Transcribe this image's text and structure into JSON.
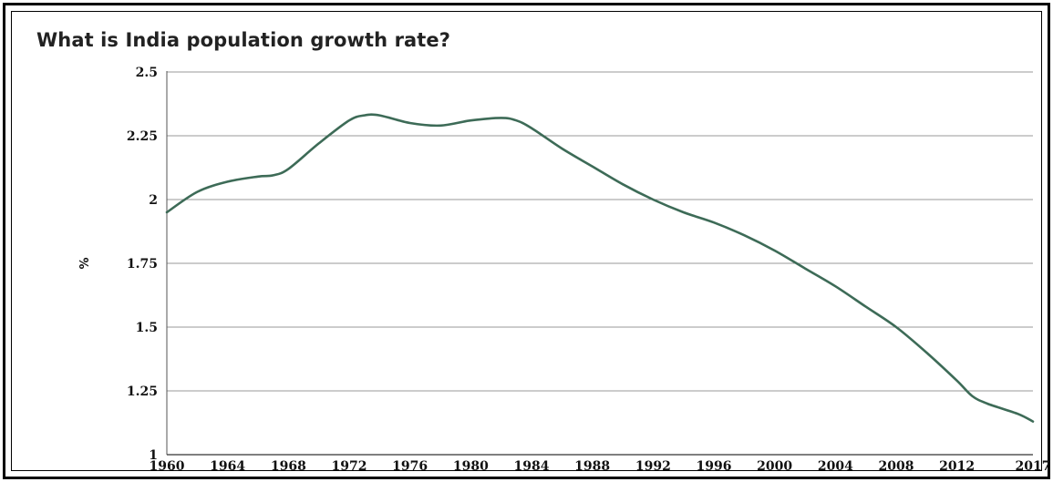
{
  "chart_data": {
    "type": "line",
    "title": "What is India population growth rate?",
    "xlabel": "",
    "ylabel": "%",
    "ylim": [
      1,
      2.5
    ],
    "xlim": [
      1960,
      2017
    ],
    "grid": true,
    "line_color": "#3d6b57",
    "y_ticks": [
      "1",
      "1.25",
      "1.5",
      "1.75",
      "2",
      "2.25",
      "2.5"
    ],
    "x_ticks": [
      "1960",
      "1964",
      "1968",
      "1972",
      "1976",
      "1980",
      "1984",
      "1988",
      "1992",
      "1996",
      "2000",
      "2004",
      "2008",
      "2012",
      "2017"
    ],
    "series": [
      {
        "x": [
          1960,
          1962,
          1964,
          1966,
          1967,
          1968,
          1970,
          1972,
          1973,
          1974,
          1976,
          1978,
          1980,
          1982,
          1983,
          1984,
          1986,
          1988,
          1990,
          1992,
          1994,
          1996,
          1998,
          2000,
          2002,
          2004,
          2006,
          2008,
          2010,
          2012,
          2013,
          2014,
          2016,
          2017
        ],
        "y": [
          1.95,
          2.03,
          2.07,
          2.09,
          2.095,
          2.12,
          2.22,
          2.31,
          2.33,
          2.33,
          2.3,
          2.29,
          2.31,
          2.32,
          2.31,
          2.28,
          2.2,
          2.13,
          2.06,
          2.0,
          1.95,
          1.91,
          1.86,
          1.8,
          1.73,
          1.66,
          1.58,
          1.5,
          1.4,
          1.29,
          1.23,
          1.2,
          1.16,
          1.13
        ]
      }
    ]
  }
}
